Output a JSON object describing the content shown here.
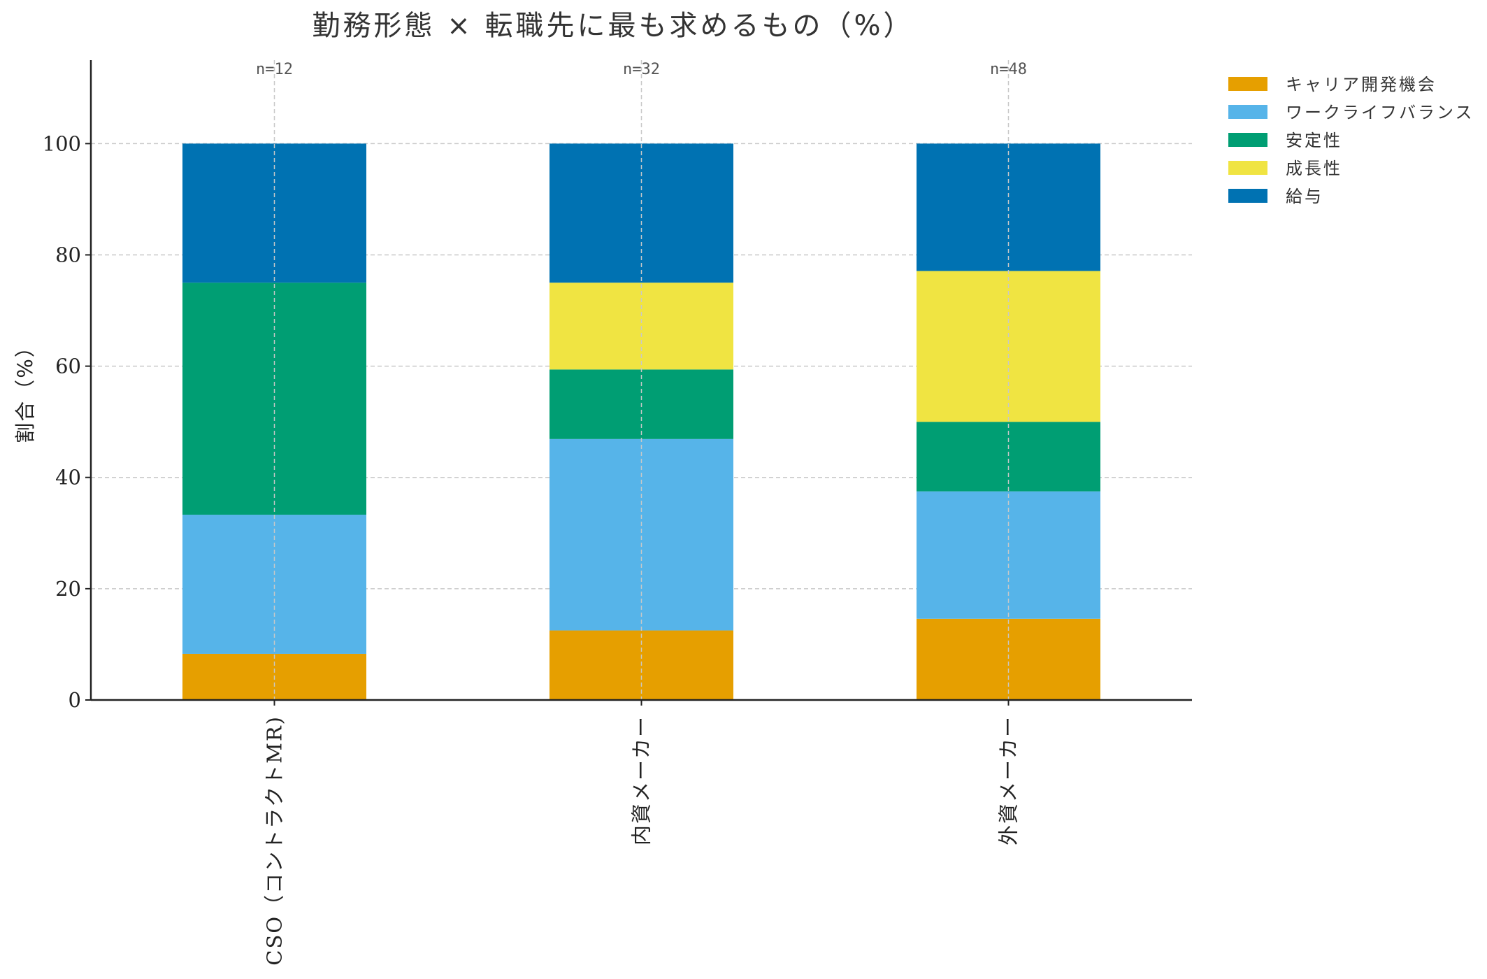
{
  "chart_data": {
    "type": "bar",
    "stacked": true,
    "title": "勤務形態 × 転職先に最も求めるもの（%）",
    "xlabel": "",
    "ylabel": "割合（%）",
    "ylim": [
      0,
      115
    ],
    "yticks": [
      0,
      20,
      40,
      60,
      80,
      100
    ],
    "grid": true,
    "legend_position": "top-right",
    "categories": [
      "CSO（コントラクトMR)",
      "内資メーカー",
      "外資メーカー"
    ],
    "annotations": [
      "n=12",
      "n=32",
      "n=48"
    ],
    "series": [
      {
        "name": "キャリア開発機会",
        "color": "#E69F00",
        "values": [
          8.3,
          12.5,
          14.6
        ]
      },
      {
        "name": "ワークライフバランス",
        "color": "#56B4E9",
        "values": [
          25.0,
          34.4,
          22.9
        ]
      },
      {
        "name": "安定性",
        "color": "#009E73",
        "values": [
          41.7,
          12.5,
          12.5
        ]
      },
      {
        "name": "成長性",
        "color": "#F0E442",
        "values": [
          0,
          15.6,
          27.1
        ]
      },
      {
        "name": "給与",
        "color": "#0072B2",
        "values": [
          25.0,
          25.0,
          22.9
        ]
      }
    ]
  }
}
